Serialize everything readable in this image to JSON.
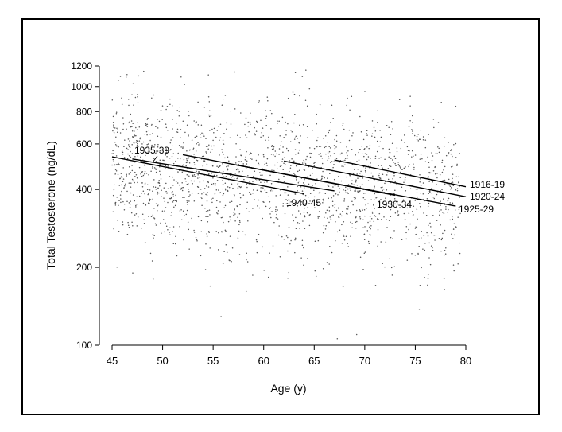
{
  "chart_data": {
    "type": "scatter",
    "title": "",
    "xlabel": "Age (y)",
    "ylabel": "Total Testosterone (ng/dL)",
    "xlim": [
      45,
      80
    ],
    "ylim": [
      100,
      1200
    ],
    "y_scale": "log",
    "grid": false,
    "xticks": [
      45,
      50,
      55,
      60,
      65,
      70,
      75,
      80
    ],
    "yticks": [
      100,
      200,
      400,
      600,
      800,
      1000,
      1200
    ],
    "x_tick_labels": [
      "45",
      "50",
      "55",
      "60",
      "65",
      "70",
      "75",
      "80"
    ],
    "y_tick_labels": [
      "100",
      "200",
      "400",
      "600",
      "800",
      "1000",
      "1200"
    ],
    "scatter_description_count": 2000,
    "cohort_lines": [
      {
        "label": "1916-19",
        "x": [
          67,
          80
        ],
        "y": [
          520,
          410
        ]
      },
      {
        "label": "1920-24",
        "x": [
          62,
          80
        ],
        "y": [
          515,
          375
        ]
      },
      {
        "label": "1925-29",
        "x": [
          57,
          79
        ],
        "y": [
          500,
          345
        ]
      },
      {
        "label": "1930-34",
        "x": [
          52,
          73
        ],
        "y": [
          545,
          380
        ]
      },
      {
        "label": "1935-39",
        "x": [
          47,
          67
        ],
        "y": [
          525,
          395
        ]
      },
      {
        "label": "1940-45",
        "x": [
          45,
          64
        ],
        "y": [
          535,
          385
        ]
      }
    ]
  }
}
